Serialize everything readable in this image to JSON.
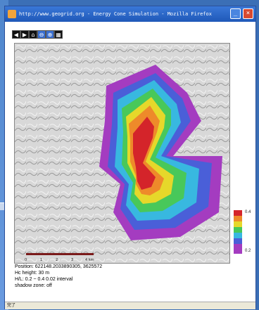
{
  "window": {
    "title": "http://www.geogrid.org - Energy Cone Simulation - Mozilla Firefox"
  },
  "toolbar": {
    "icons": [
      "arrow-left-icon",
      "arrow-right-icon",
      "home-icon",
      "zoom-out-icon",
      "zoom-in-icon",
      "grid-icon"
    ]
  },
  "scalebar": {
    "labels": [
      "0",
      "1",
      "2",
      "3",
      "4 km"
    ]
  },
  "legend": {
    "max_label": "0.4",
    "min_label": "0.2"
  },
  "info": {
    "position": "Position: 622148.2033890305, 3625572",
    "hc_height": "Hc height: 30 m",
    "hl": "H/L: 0.2 ~ 0.4    0.02 interval",
    "shadow": "shadow zone: off"
  },
  "status": {
    "text": "完了"
  },
  "colors": {
    "titlebar": "#1f58b8",
    "cone_max": "#d4242a",
    "cone_min": "#a43cc0"
  }
}
